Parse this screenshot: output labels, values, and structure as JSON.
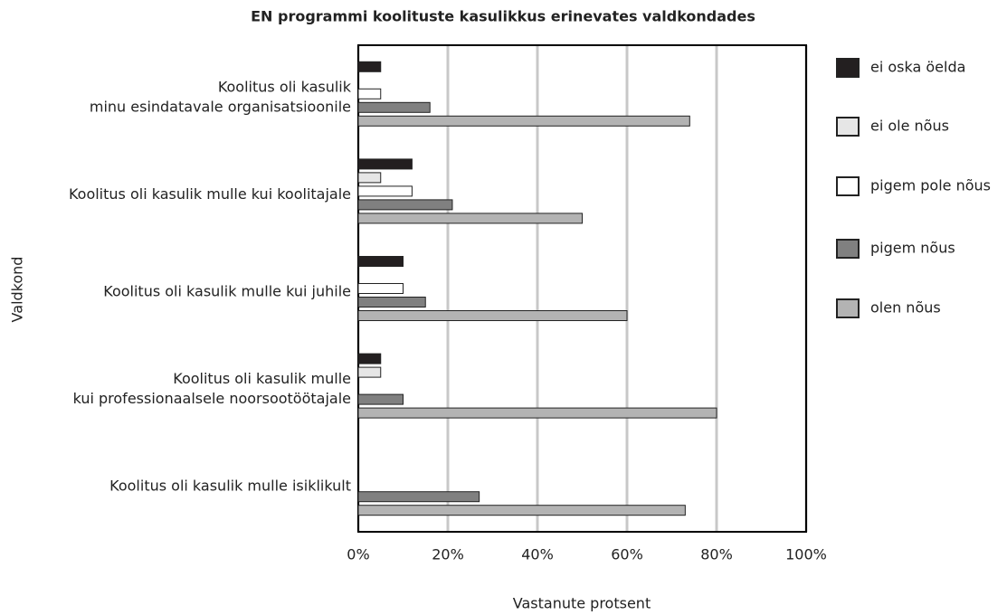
{
  "chart_data": {
    "type": "bar",
    "orientation": "horizontal",
    "title": "EN programmi koolituste kasulikkus erinevates valdkondades",
    "x_label": "Vastanute protsent",
    "y_label": "Valdkond",
    "categories": [
      [
        "Koolitus oli kasulik",
        "minu esindatavale organisatsioonile"
      ],
      [
        "Koolitus oli kasulik mulle kui koolitajale"
      ],
      [
        "Koolitus oli kasulik mulle kui juhile"
      ],
      [
        "Koolitus oli kasulik mulle",
        "kui professionaalsele noorsootöötajale"
      ],
      [
        "Koolitus oli kasulik mulle isiklikult"
      ]
    ],
    "series": [
      {
        "name": "ei oska öelda",
        "color": "#231f20",
        "values": [
          5,
          12,
          10,
          5,
          null
        ]
      },
      {
        "name": "ei ole nõus",
        "color": "#e6e6e6",
        "values": [
          null,
          5,
          null,
          5,
          null
        ]
      },
      {
        "name": "pigem pole nõus",
        "color": "#ffffff",
        "values": [
          5,
          12,
          10,
          null,
          null
        ]
      },
      {
        "name": "pigem nõus",
        "color": "#808080",
        "values": [
          16,
          21,
          15,
          10,
          27
        ]
      },
      {
        "name": "olen nõus",
        "color": "#b3b3b3",
        "values": [
          74,
          50,
          60,
          80,
          73
        ]
      }
    ],
    "xlim": [
      0,
      100
    ],
    "xticks": [
      {
        "value": 0,
        "label": "0%"
      },
      {
        "value": 20,
        "label": "20%"
      },
      {
        "value": 40,
        "label": "40%"
      },
      {
        "value": 60,
        "label": "60%"
      },
      {
        "value": 80,
        "label": "80%"
      },
      {
        "value": 100,
        "label": "100%"
      }
    ],
    "grid": true,
    "legend": "right"
  }
}
